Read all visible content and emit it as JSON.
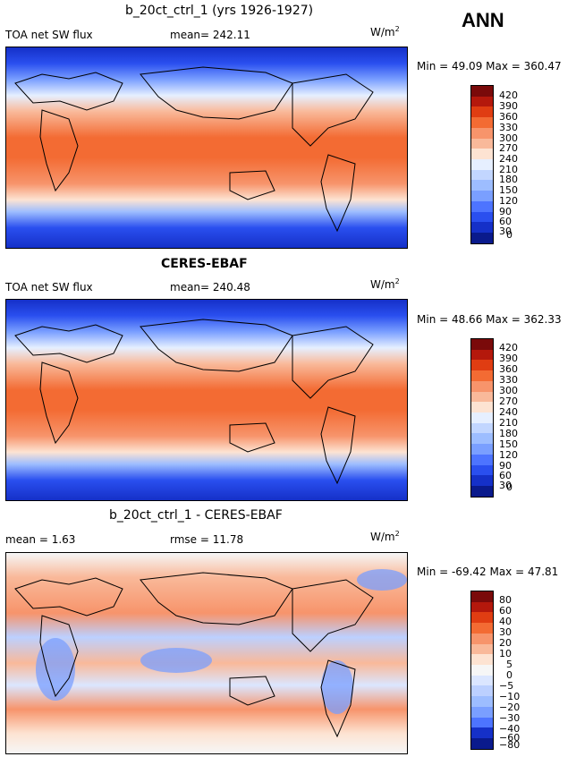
{
  "season": "ANN",
  "units_label": "W/m",
  "units_sup": "2",
  "panels": [
    {
      "title": "b_20ct_ctrl_1 (yrs 1926-1927)",
      "left_label": "TOA net SW flux",
      "stat_label": "mean= 242.11",
      "minmax": "Min =  49.09 Max = 360.47",
      "colorbar": [
        "420",
        "390",
        "360",
        "330",
        "300",
        "270",
        "240",
        "210",
        "180",
        "150",
        "120",
        "90",
        "60",
        "30",
        "0"
      ]
    },
    {
      "title": "CERES-EBAF",
      "left_label": "TOA net SW flux",
      "stat_label": "mean= 240.48",
      "minmax": "Min =  48.66 Max = 362.33",
      "colorbar": [
        "420",
        "390",
        "360",
        "330",
        "300",
        "270",
        "240",
        "210",
        "180",
        "150",
        "120",
        "90",
        "60",
        "30",
        "0"
      ]
    },
    {
      "title": "b_20ct_ctrl_1 - CERES-EBAF",
      "left_label": "mean =   1.63",
      "stat_label": "rmse =  11.78",
      "minmax": "Min = -69.42 Max =  47.81",
      "colorbar": [
        "80",
        "60",
        "40",
        "30",
        "20",
        "10",
        "5",
        "0",
        "−5",
        "−10",
        "−20",
        "−30",
        "−40",
        "−60",
        "−80"
      ]
    }
  ],
  "colors": {
    "abs_scale": [
      "#7a0a0a",
      "#b4180c",
      "#e03d12",
      "#f36b33",
      "#f7946b",
      "#f9b99a",
      "#fde3d2",
      "#e6efff",
      "#c2d6ff",
      "#9dbdff",
      "#7a9fff",
      "#4d74ff",
      "#2a4fef",
      "#1530c8",
      "#0a1a8c"
    ],
    "diff_scale": [
      "#7a0a0a",
      "#b4180c",
      "#e03d12",
      "#f36b33",
      "#f7946b",
      "#f9b99a",
      "#fde3d2",
      "#f6f6f6",
      "#dbe6ff",
      "#bcd0ff",
      "#9dbdff",
      "#7a9fff",
      "#4d74ff",
      "#1530c8",
      "#0a1a8c"
    ]
  }
}
